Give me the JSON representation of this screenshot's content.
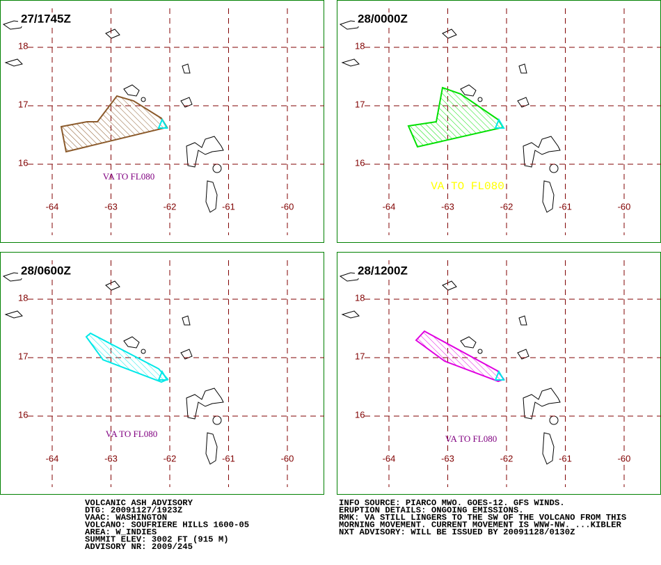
{
  "panels": [
    {
      "time": "27/1745Z",
      "va_label": "VA TO FL080"
    },
    {
      "time": "28/0000Z",
      "va_label": "VA TO FL080"
    },
    {
      "time": "28/0600Z",
      "va_label": "VA TO FL080"
    },
    {
      "time": "28/1200Z",
      "va_label": "VA TO FL080"
    }
  ],
  "lats": [
    18,
    17,
    16
  ],
  "lons": [
    -64,
    -63,
    -62,
    -61,
    -60
  ],
  "advisory_left": [
    "VOLCANIC ASH ADVISORY",
    "DTG: 20091127/1923Z",
    "VAAC: WASHINGTON",
    "VOLCANO: SOUFRIERE HILLS 1600-05",
    "AREA: W_INDIES",
    "SUMMIT ELEV: 3002 FT (915 M)",
    "ADVISORY NR: 2009/245"
  ],
  "advisory_right": [
    "INFO SOURCE: PIARCO MWO. GOES-12. GFS WINDS.",
    "ERUPTION DETAILS: ONGOING EMISSIONS.",
    "RMK: VA STILL LINGERS TO THE SW OF THE VOLCANO FROM THIS",
    "MORNING MOVEMENT. CURRENT MOVEMENT IS WNW-NW. ...KIBLER",
    "NXT ADVISORY: WILL BE ISSUED BY 20091128/0130Z"
  ]
}
